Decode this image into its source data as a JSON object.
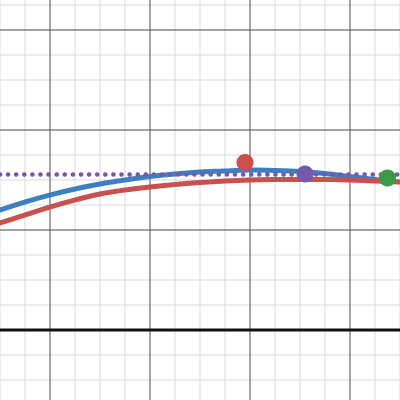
{
  "chart_data": {
    "type": "line",
    "grid": true,
    "xlim": [
      -1,
      7
    ],
    "ylim": [
      -1.4,
      6.6
    ],
    "x_axis_y": 0,
    "minor_grid_step": 0.5,
    "major_grid_step": 2,
    "series": [
      {
        "style": "solid",
        "color": "#3d7fc0",
        "x": [
          -1.0,
          -0.5,
          0.0,
          0.5,
          1.0,
          1.5,
          2.0,
          2.5,
          3.0,
          3.5,
          4.0,
          4.5,
          5.0,
          5.5,
          6.0,
          6.5,
          7.0
        ],
        "y": [
          2.4,
          2.56,
          2.7,
          2.82,
          2.92,
          3.0,
          3.07,
          3.12,
          3.16,
          3.18,
          3.2,
          3.19,
          3.17,
          3.13,
          3.07,
          3.01,
          2.96
        ]
      },
      {
        "style": "solid",
        "color": "#c9504c",
        "x": [
          -1.0,
          -0.5,
          0.0,
          0.5,
          1.0,
          1.5,
          2.0,
          2.5,
          3.0,
          3.5,
          4.0,
          4.5,
          5.0,
          5.5,
          6.0,
          6.5,
          7.0
        ],
        "y": [
          2.14,
          2.3,
          2.46,
          2.6,
          2.72,
          2.8,
          2.86,
          2.91,
          2.95,
          2.98,
          3.0,
          3.01,
          3.01,
          3.01,
          3.0,
          2.98,
          2.96
        ]
      },
      {
        "style": "dotted",
        "color": "#7559ad",
        "x": [
          -1.0,
          7.0
        ],
        "y": [
          3.11,
          3.11
        ]
      }
    ],
    "points": [
      {
        "x": 3.9,
        "y": 3.35,
        "color": "#c9504c"
      },
      {
        "x": 5.1,
        "y": 3.12,
        "color": "#7559ad"
      },
      {
        "x": 6.75,
        "y": 3.04,
        "color": "#3a9a48"
      }
    ]
  }
}
